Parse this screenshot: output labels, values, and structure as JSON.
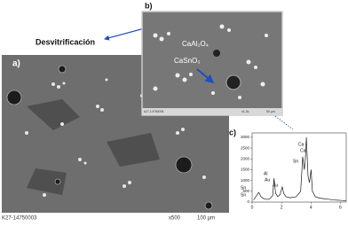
{
  "heading": "Desvitrificación",
  "panel_a": {
    "label": "a)",
    "code": "K27-14750003",
    "magnification": "x500",
    "scale": "100 µm"
  },
  "panel_b": {
    "label": "b)",
    "phase_1": "CaAl₂O₄",
    "phase_2": "CaSnO₃",
    "code": "k27-14750005",
    "magnification": "x1.2k",
    "scale": "50 µm"
  },
  "panel_c": {
    "label": "c)"
  },
  "chart_data": {
    "type": "line",
    "x": [
      0.1,
      0.3,
      0.45,
      0.6,
      0.8,
      1.0,
      1.2,
      1.4,
      1.49,
      1.6,
      1.75,
      1.9,
      2.05,
      2.15,
      2.3,
      2.6,
      3.0,
      3.3,
      3.44,
      3.55,
      3.62,
      3.69,
      3.8,
      3.9,
      4.01,
      4.1,
      4.3,
      4.6,
      5.0,
      5.5,
      6.0,
      6.4
    ],
    "values": [
      100,
      300,
      450,
      250,
      150,
      120,
      150,
      300,
      1100,
      400,
      250,
      350,
      700,
      400,
      250,
      200,
      250,
      500,
      2100,
      1500,
      2000,
      3000,
      1200,
      900,
      1500,
      500,
      250,
      180,
      150,
      100,
      80,
      60
    ],
    "color": "#1a1a1a",
    "xlim": [
      0,
      6.4
    ],
    "ylim": [
      0,
      3200
    ],
    "xticks": [
      0,
      2,
      4,
      6
    ],
    "yticks": [
      0,
      500,
      1000,
      1500,
      2000,
      2500,
      3000
    ],
    "annotations": [
      "Sn",
      "Sn",
      "Al",
      "Au",
      "Au",
      "Sn",
      "Ca",
      "Ca"
    ]
  }
}
